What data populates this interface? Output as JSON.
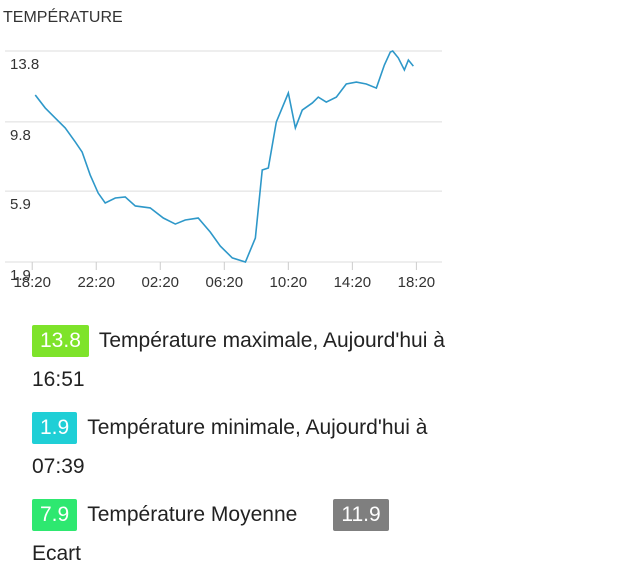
{
  "chart_data": {
    "type": "line",
    "title": "TEMPÉRATURE",
    "x": [
      0.19,
      0.81,
      1.44,
      2.06,
      2.69,
      3.12,
      3.62,
      4.12,
      4.56,
      5.19,
      5.81,
      6.44,
      7.37,
      8.19,
      8.94,
      9.56,
      10.37,
      11.12,
      11.75,
      12.5,
      13.32,
      13.94,
      14.37,
      14.75,
      15.25,
      16.0,
      16.44,
      16.87,
      17.5,
      17.87,
      18.37,
      19.0,
      19.62,
      20.25,
      20.87,
      21.5,
      22.0,
      22.37,
      22.52,
      22.87,
      23.25,
      23.5,
      23.81
    ],
    "series": [
      {
        "color": "#2e98c9",
        "values": [
          11.32,
          10.59,
          10.02,
          9.46,
          8.67,
          8.1,
          6.81,
          5.79,
          5.23,
          5.51,
          5.57,
          5.06,
          4.95,
          4.38,
          4.04,
          4.27,
          4.38,
          3.59,
          2.8,
          2.13,
          1.9,
          3.25,
          7.09,
          7.2,
          9.8,
          11.43,
          9.46,
          10.47,
          10.87,
          11.2,
          10.92,
          11.2,
          11.94,
          12.05,
          11.94,
          11.71,
          13.01,
          13.74,
          13.8,
          13.41,
          12.73,
          13.29,
          12.95
        ]
      }
    ],
    "xlim": [
      -1.7,
      25.6
    ],
    "xticks": [
      {
        "value": 0,
        "label": "18:20"
      },
      {
        "value": 4,
        "label": "22:20"
      },
      {
        "value": 8,
        "label": "02:20"
      },
      {
        "value": 12,
        "label": "06:20"
      },
      {
        "value": 16,
        "label": "10:20"
      },
      {
        "value": 20,
        "label": "14:20"
      },
      {
        "value": 24,
        "label": "18:20"
      }
    ],
    "ylim": [
      1.9,
      13.8
    ],
    "yticks": [
      1.9,
      5.9,
      9.8,
      13.8
    ],
    "grid": true
  },
  "stats": [
    {
      "value": 13.8,
      "color": "#7ee32a",
      "label": "Température maximale, Aujourd'hui à",
      "time": "16:51"
    },
    {
      "value": 1.9,
      "color": "#1fcfd6",
      "label": "Température minimale, Aujourd'hui à",
      "time": "07:39"
    },
    {
      "value": 7.9,
      "color": "#2ee870",
      "label": "Température Moyenne"
    },
    {
      "value": 11.9,
      "color": "#7f7f7f",
      "label": "Ecart"
    }
  ]
}
